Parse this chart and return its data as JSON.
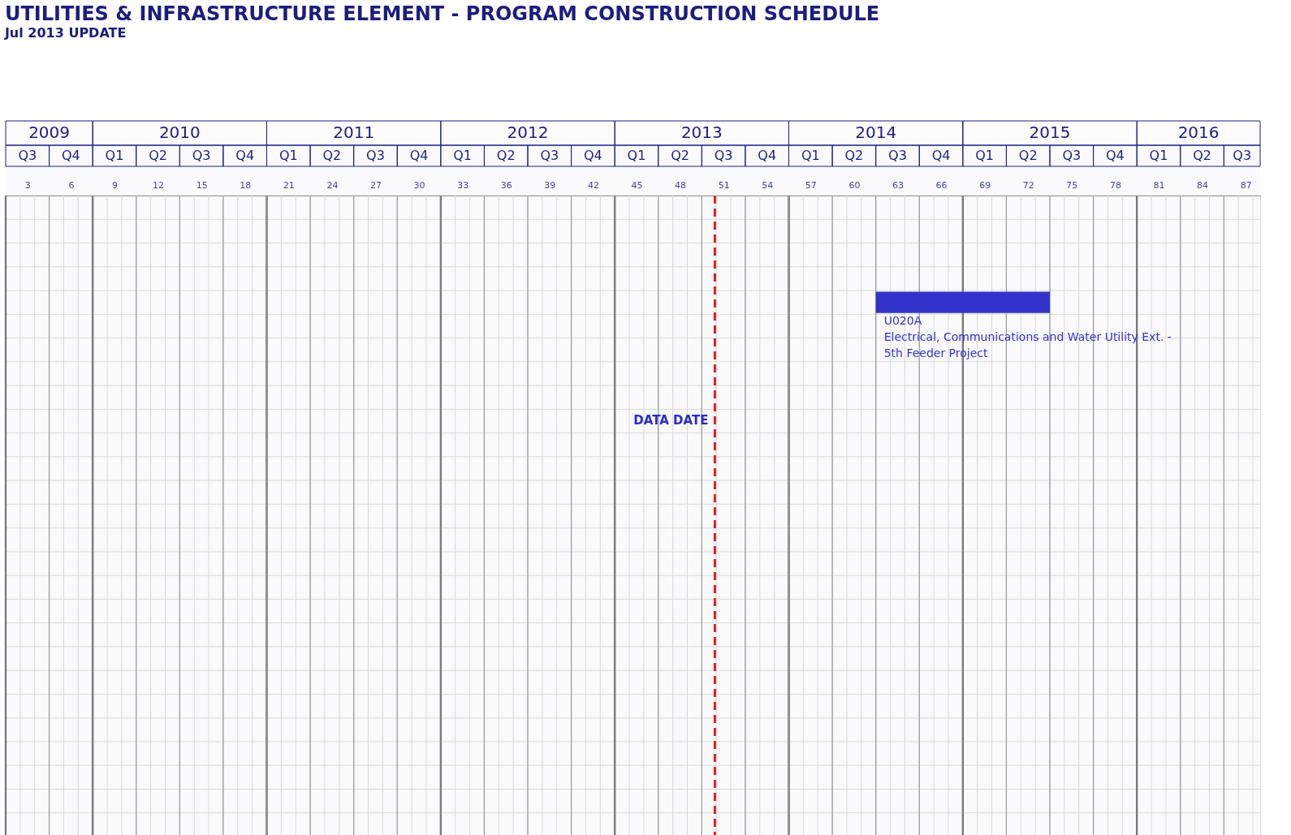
{
  "chart_data": {
    "type": "bar",
    "orientation": "horizontal",
    "title": "UTILITIES & INFRASTRUCTURE ELEMENT - PROGRAM CONSTRUCTION SCHEDULE",
    "subtitle": "Jul 2013 UPDATE",
    "categories": [
      null,
      null,
      null,
      null,
      null,
      null,
      null,
      null,
      null,
      null,
      null,
      null,
      null,
      null,
      null,
      null,
      null,
      null,
      null,
      null,
      null,
      null,
      null,
      null,
      null,
      null,
      null
    ],
    "values": [
      null,
      null,
      null,
      null,
      12,
      null,
      null,
      null,
      null,
      null,
      null,
      null,
      null,
      null,
      null,
      null,
      null,
      null,
      null,
      null,
      null,
      null,
      null,
      null,
      null,
      null,
      null
    ],
    "base": [
      null,
      null,
      null,
      null,
      61.5,
      null,
      null,
      null,
      null,
      null,
      null,
      null,
      null,
      null,
      null,
      null,
      null,
      null,
      null,
      null,
      null,
      null,
      null,
      null,
      null,
      null,
      null
    ],
    "color": "#3333cc",
    "xlim": [
      1.5,
      88
    ],
    "xticks": [
      3,
      6,
      9,
      12,
      15,
      18,
      21,
      24,
      27,
      30,
      33,
      36,
      39,
      42,
      45,
      48,
      51,
      54,
      57,
      60,
      63,
      66,
      69,
      72,
      75,
      78,
      81,
      84,
      87
    ],
    "tick_labels": "x",
    "grid": true,
    "bands": [
      {
        "axis": "x",
        "from": 1.5,
        "to": 7.5,
        "label": "2009"
      },
      {
        "axis": "x",
        "from": 7.5,
        "to": 19.5,
        "label": "2010"
      },
      {
        "axis": "x",
        "from": 19.5,
        "to": 31.5,
        "label": "2011"
      },
      {
        "axis": "x",
        "from": 31.5,
        "to": 43.5,
        "label": "2012"
      },
      {
        "axis": "x",
        "from": 43.5,
        "to": 55.5,
        "label": "2013"
      },
      {
        "axis": "x",
        "from": 55.5,
        "to": 67.5,
        "label": "2014"
      },
      {
        "axis": "x",
        "from": 67.5,
        "to": 79.5,
        "label": "2015"
      },
      {
        "axis": "x",
        "from": 79.5,
        "to": 88,
        "label": "2016"
      },
      {
        "axis": "x",
        "from": 1.5,
        "to": 4.5,
        "label": "Q3"
      },
      {
        "axis": "x",
        "from": 4.5,
        "to": 7.5,
        "label": "Q4"
      },
      {
        "axis": "x",
        "from": 7.5,
        "to": 10.5,
        "label": "Q1"
      },
      {
        "axis": "x",
        "from": 10.5,
        "to": 13.5,
        "label": "Q2"
      },
      {
        "axis": "x",
        "from": 13.5,
        "to": 16.5,
        "label": "Q3"
      },
      {
        "axis": "x",
        "from": 16.5,
        "to": 19.5,
        "label": "Q4"
      },
      {
        "axis": "x",
        "from": 19.5,
        "to": 22.5,
        "label": "Q1"
      },
      {
        "axis": "x",
        "from": 22.5,
        "to": 25.5,
        "label": "Q2"
      },
      {
        "axis": "x",
        "from": 25.5,
        "to": 28.5,
        "label": "Q3"
      },
      {
        "axis": "x",
        "from": 28.5,
        "to": 31.5,
        "label": "Q4"
      },
      {
        "axis": "x",
        "from": 31.5,
        "to": 34.5,
        "label": "Q1"
      },
      {
        "axis": "x",
        "from": 34.5,
        "to": 37.5,
        "label": "Q2"
      },
      {
        "axis": "x",
        "from": 37.5,
        "to": 40.5,
        "label": "Q3"
      },
      {
        "axis": "x",
        "from": 40.5,
        "to": 43.5,
        "label": "Q4"
      },
      {
        "axis": "x",
        "from": 43.5,
        "to": 46.5,
        "label": "Q1"
      },
      {
        "axis": "x",
        "from": 46.5,
        "to": 49.5,
        "label": "Q2"
      },
      {
        "axis": "x",
        "from": 49.5,
        "to": 52.5,
        "label": "Q3"
      },
      {
        "axis": "x",
        "from": 52.5,
        "to": 55.5,
        "label": "Q4"
      },
      {
        "axis": "x",
        "from": 55.5,
        "to": 58.5,
        "label": "Q1"
      },
      {
        "axis": "x",
        "from": 58.5,
        "to": 61.5,
        "label": "Q2"
      },
      {
        "axis": "x",
        "from": 61.5,
        "to": 64.5,
        "label": "Q3"
      },
      {
        "axis": "x",
        "from": 64.5,
        "to": 67.5,
        "label": "Q4"
      },
      {
        "axis": "x",
        "from": 67.5,
        "to": 70.5,
        "label": "Q1"
      },
      {
        "axis": "x",
        "from": 70.5,
        "to": 73.5,
        "label": "Q2"
      },
      {
        "axis": "x",
        "from": 73.5,
        "to": 76.5,
        "label": "Q3"
      },
      {
        "axis": "x",
        "from": 76.5,
        "to": 79.5,
        "label": "Q4"
      },
      {
        "axis": "x",
        "from": 79.5,
        "to": 82.5,
        "label": "Q1"
      },
      {
        "axis": "x",
        "from": 82.5,
        "to": 85.5,
        "label": "Q2"
      },
      {
        "axis": "x",
        "from": 85.5,
        "to": 88,
        "label": "Q3"
      }
    ],
    "ref_lines": [
      {
        "axis": "x",
        "value": 50.4,
        "label": "DATA DATE",
        "color": "#e02020",
        "line_style": "dashed"
      }
    ],
    "annotations": [
      "U020A\nElectrical, Communications and Water Utility Ext.  -\n5th Feeder Project"
    ]
  }
}
